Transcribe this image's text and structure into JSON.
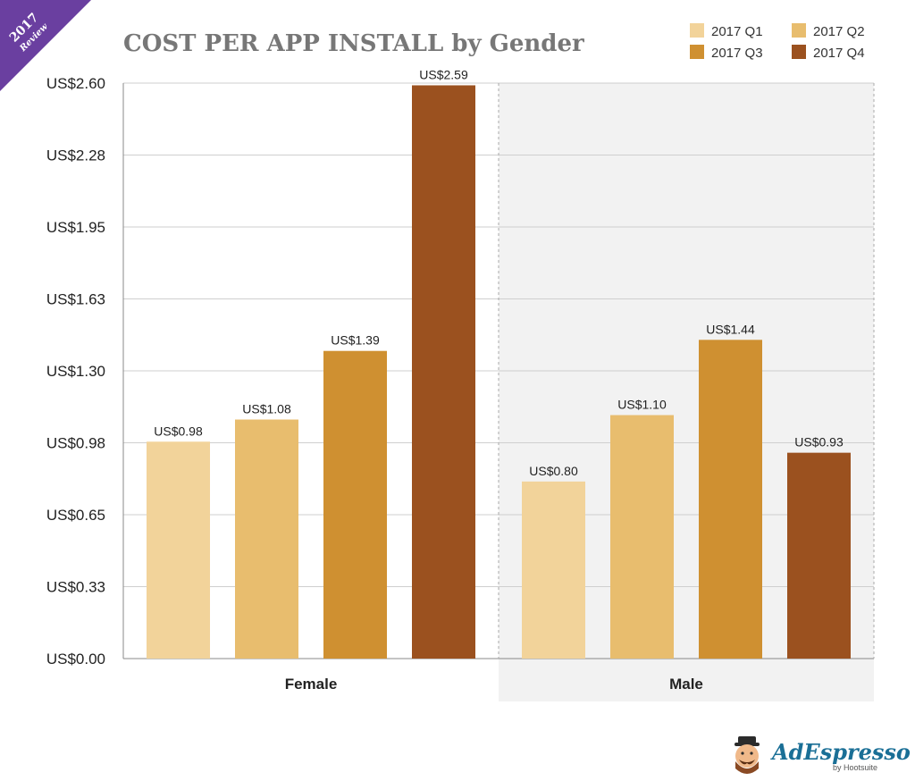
{
  "badge": {
    "year": "2017",
    "sub": "Review",
    "color": "#6a3fa0"
  },
  "brand": {
    "name": "AdEspresso",
    "sub": "by Hootsuite"
  },
  "chart_data": {
    "type": "bar",
    "title": "COST PER APP INSTALL by Gender",
    "categories": [
      "Female",
      "Male"
    ],
    "series": [
      {
        "name": "2017 Q1",
        "color": "#f2d39a",
        "values": [
          0.98,
          0.8
        ],
        "labels": [
          "US$0.98",
          "US$0.80"
        ]
      },
      {
        "name": "2017 Q2",
        "color": "#e8bd6e",
        "values": [
          1.08,
          1.1
        ],
        "labels": [
          "US$1.08",
          "US$1.10"
        ]
      },
      {
        "name": "2017 Q3",
        "color": "#cf9031",
        "values": [
          1.39,
          1.44
        ],
        "labels": [
          "US$1.39",
          "US$1.44"
        ]
      },
      {
        "name": "2017 Q4",
        "color": "#9b511f",
        "values": [
          2.59,
          0.93
        ],
        "labels": [
          "US$2.59",
          "US$0.93"
        ]
      }
    ],
    "yticks": [
      0,
      0.325,
      0.65,
      0.975,
      1.3,
      1.625,
      1.95,
      2.275,
      2.6
    ],
    "ytick_labels": [
      "US$0.00",
      "US$0.33",
      "US$0.65",
      "US$0.98",
      "US$1.30",
      "US$1.63",
      "US$1.95",
      "US$2.28",
      "US$2.60"
    ],
    "ylim": [
      0,
      2.6
    ],
    "xlabel": "",
    "ylabel": "",
    "grid": true,
    "legend": "top-right",
    "shaded_category": "Male"
  }
}
